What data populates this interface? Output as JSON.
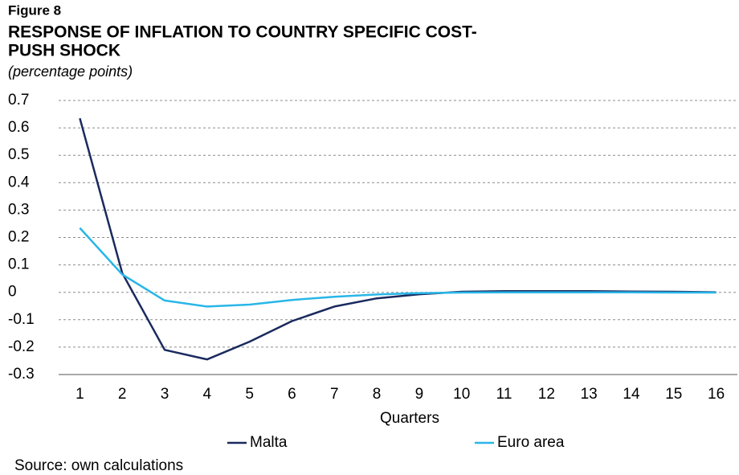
{
  "chart_data": {
    "type": "line",
    "figure_label": "Figure 8",
    "title_lines": [
      "RESPONSE OF INFLATION TO COUNTRY SPECIFIC COST-",
      "PUSH SHOCK"
    ],
    "subtitle": "(percentage points)",
    "x_label": "Quarters",
    "source": "Source: own calculations",
    "categories": [
      "1",
      "2",
      "3",
      "4",
      "5",
      "6",
      "7",
      "8",
      "9",
      "10",
      "11",
      "12",
      "13",
      "14",
      "15",
      "16"
    ],
    "series": [
      {
        "name": "Malta",
        "color": "#1a2a5e",
        "values": [
          0.635,
          0.07,
          -0.21,
          -0.245,
          -0.18,
          -0.105,
          -0.052,
          -0.022,
          -0.007,
          0.002,
          0.004,
          0.004,
          0.004,
          0.003,
          0.002,
          0.0
        ]
      },
      {
        "name": "Euro area",
        "color": "#29b6e8",
        "values": [
          0.235,
          0.065,
          -0.03,
          -0.052,
          -0.045,
          -0.028,
          -0.016,
          -0.008,
          -0.003,
          -0.001,
          0.0,
          0.0,
          0.0,
          0.0,
          -0.001,
          -0.001
        ]
      }
    ],
    "ylim": [
      -0.3,
      0.7
    ],
    "yticks": [
      -0.3,
      -0.2,
      -0.1,
      0,
      0.1,
      0.2,
      0.3,
      0.4,
      0.5,
      0.6,
      0.7
    ],
    "grid": true,
    "legend": "bottom"
  }
}
